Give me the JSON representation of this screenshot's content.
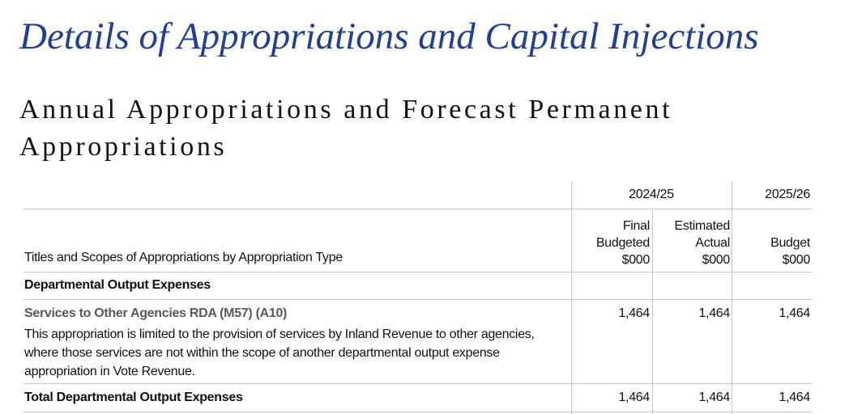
{
  "header": {
    "title": "Details of Appropriations and Capital Injections",
    "subtitle": "Annual Appropriations and Forecast Permanent Appropriations"
  },
  "table": {
    "year_headers": [
      "2024/25",
      "2025/26"
    ],
    "column_headers": [
      "Titles and Scopes of Appropriations by Appropriation Type",
      "Final Budgeted $000",
      "Estimated Actual $000",
      "Budget $000"
    ],
    "sections": [
      {
        "heading": "Departmental Output Expenses",
        "items": [
          {
            "name": "Services to Other Agencies RDA (M57) (A10)",
            "scope": "This appropriation is limited to the provision of services by Inland Revenue to other agencies, where those services are not within the scope of another departmental output expense appropriation in Vote Revenue.",
            "values": [
              "1,464",
              "1,464",
              "1,464"
            ]
          }
        ],
        "total": {
          "label": "Total Departmental Output Expenses",
          "values": [
            "1,464",
            "1,464",
            "1,464"
          ]
        }
      }
    ]
  }
}
